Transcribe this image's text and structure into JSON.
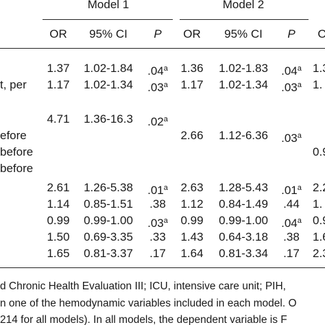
{
  "header": {
    "models": [
      "Model 1",
      "Model 2"
    ],
    "columns": [
      "OR",
      "95% CI",
      "P",
      "OR",
      "95% CI",
      "P",
      "O"
    ]
  },
  "rows": [
    {
      "label": null,
      "cells": [
        "1.37",
        "1.02-1.84",
        {
          "text": ".04",
          "sup": "a"
        },
        "1.36",
        "1.02-1.83",
        {
          "text": ".04",
          "sup": "a"
        },
        "1.3"
      ]
    },
    {
      "label": "t, per",
      "cells": [
        "1.17",
        "1.02-1.34",
        {
          "text": ".03",
          "sup": "a"
        },
        "1.17",
        "1.02-1.34",
        {
          "text": ".03",
          "sup": "a"
        },
        "1."
      ]
    },
    {
      "label": null,
      "cells": [
        "4.71",
        "1.36-16.3",
        {
          "text": ".02",
          "sup": "a"
        },
        null,
        null,
        null,
        null
      ]
    },
    {
      "label": "efore",
      "cells": [
        null,
        null,
        null,
        "2.66",
        "1.12-6.36",
        {
          "text": ".03",
          "sup": "a"
        },
        null
      ]
    },
    {
      "label": "before",
      "cells": [
        null,
        null,
        null,
        null,
        null,
        null,
        "0.9"
      ]
    },
    {
      "label": "before",
      "cells": [
        null,
        null,
        null,
        null,
        null,
        null,
        null
      ]
    },
    {
      "label": null,
      "cells": [
        "2.61",
        "1.26-5.38",
        {
          "text": ".01",
          "sup": "a"
        },
        "2.63",
        "1.28-5.43",
        {
          "text": ".01",
          "sup": "a"
        },
        "2.2"
      ]
    },
    {
      "label": null,
      "cells": [
        "1.14",
        "0.85-1.51",
        ".38",
        "1.12",
        "0.84-1.49",
        ".44",
        "1."
      ]
    },
    {
      "label": null,
      "cells": [
        "0.99",
        "0.99-1.00",
        {
          "text": ".03",
          "sup": "a"
        },
        "0.99",
        "0.99-1.00",
        {
          "text": ".04",
          "sup": "a"
        },
        "0.9"
      ]
    },
    {
      "label": null,
      "cells": [
        "1.50",
        "0.69-3.35",
        ".33",
        "1.43",
        "0.64-3.18",
        ".38",
        "1.6"
      ]
    },
    {
      "label": null,
      "cells": [
        "1.65",
        "0.81-3.37",
        ".17",
        "1.64",
        "0.81-3.34",
        ".17",
        "2.3"
      ]
    }
  ],
  "footnotes": [
    "d Chronic Health Evaluation III; ICU, intensive care unit; PIH,",
    "n one of the hemodynamic variables included in each model. O",
    "214 for all models). In all models, the dependent variable is F"
  ]
}
